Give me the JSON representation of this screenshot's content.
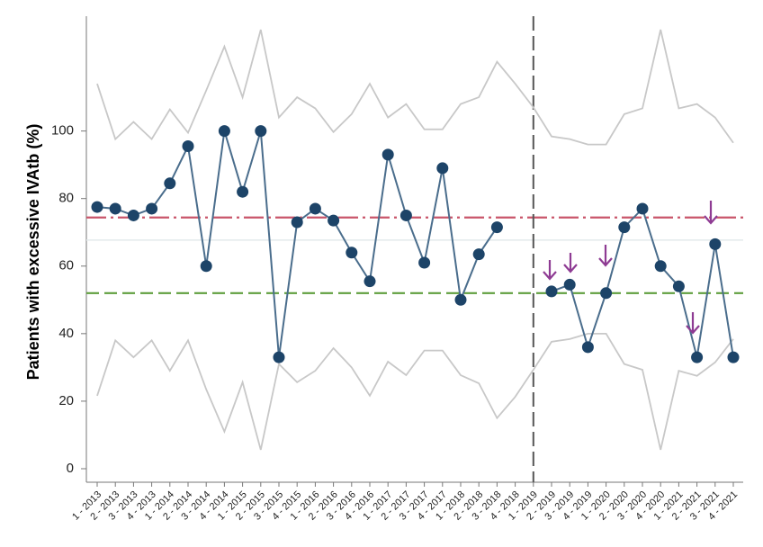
{
  "chart_data": {
    "type": "line",
    "ylabel": "Patients with excessive IVAtb (%)",
    "categories": [
      "1 - 2013",
      "2 - 2013",
      "3 - 2013",
      "4 - 2013",
      "1 - 2014",
      "2 - 2014",
      "3 - 2014",
      "4 - 2014",
      "1 - 2015",
      "2 - 2015",
      "3 - 2015",
      "4 - 2015",
      "1 - 2016",
      "2 - 2016",
      "3 - 2016",
      "4 - 2016",
      "1 - 2017",
      "2 - 2017",
      "3 - 2017",
      "4 - 2017",
      "1 - 2018",
      "2 - 2018",
      "3 - 2018",
      "4 - 2018",
      "1 - 2019",
      "2 - 2019",
      "3 - 2019",
      "4 - 2019",
      "1 - 2020",
      "2 - 2020",
      "3 - 2020",
      "4 - 2020",
      "1 - 2021",
      "2 - 2021",
      "3 - 2021",
      "4 - 2021"
    ],
    "series": [
      {
        "color": "#4a6d8c",
        "marker_color": "#1d4468",
        "markers": true,
        "values": [
          77.5,
          77,
          75,
          77,
          84.5,
          95.5,
          60,
          100,
          82,
          100,
          33,
          73,
          77,
          73.5,
          64,
          55.5,
          93,
          75,
          61,
          89,
          50,
          63.5,
          71.5,
          null,
          null,
          52.5,
          54.5,
          36,
          52,
          71.5,
          77,
          60,
          54,
          33,
          66.5,
          33
        ]
      },
      {
        "color": "#c8c8c8",
        "markers": false,
        "values": [
          114,
          97.6,
          102.7,
          97.6,
          106.4,
          99.5,
          112,
          125,
          110,
          130,
          104,
          110,
          106.7,
          99.7,
          105,
          114,
          104,
          108,
          100.5,
          100.5,
          108,
          110,
          120.5,
          114,
          107,
          98.4,
          97.6,
          96,
          96,
          105,
          106.7,
          130,
          106.7,
          108,
          104,
          96.5
        ]
      },
      {
        "color": "#c8c8c8",
        "markers": false,
        "values": [
          21.6,
          38,
          33,
          38,
          29,
          38,
          23.5,
          11,
          25.6,
          5.6,
          31,
          25.6,
          29,
          35.7,
          30,
          21.6,
          31.7,
          27.7,
          35,
          35,
          27.7,
          25.3,
          15,
          21.3,
          29.3,
          37.6,
          38.4,
          40,
          40,
          31,
          29.3,
          5.6,
          29,
          27.5,
          31.5,
          38.4
        ]
      }
    ],
    "hlines": [
      {
        "value": 74.4,
        "color": "#c9556a",
        "dash": "22 5 3 5"
      },
      {
        "value": 67.7,
        "color": "#e3e9ec",
        "dash": "none"
      },
      {
        "value": 52,
        "color": "#5e9e3c",
        "dash": "14 6"
      }
    ],
    "vline": {
      "category": "1 - 2019",
      "color": "#555555",
      "dash": "16 6"
    },
    "ylim": [
      -4,
      134
    ],
    "yticks": [
      0,
      20,
      40,
      60,
      80,
      100
    ]
  }
}
